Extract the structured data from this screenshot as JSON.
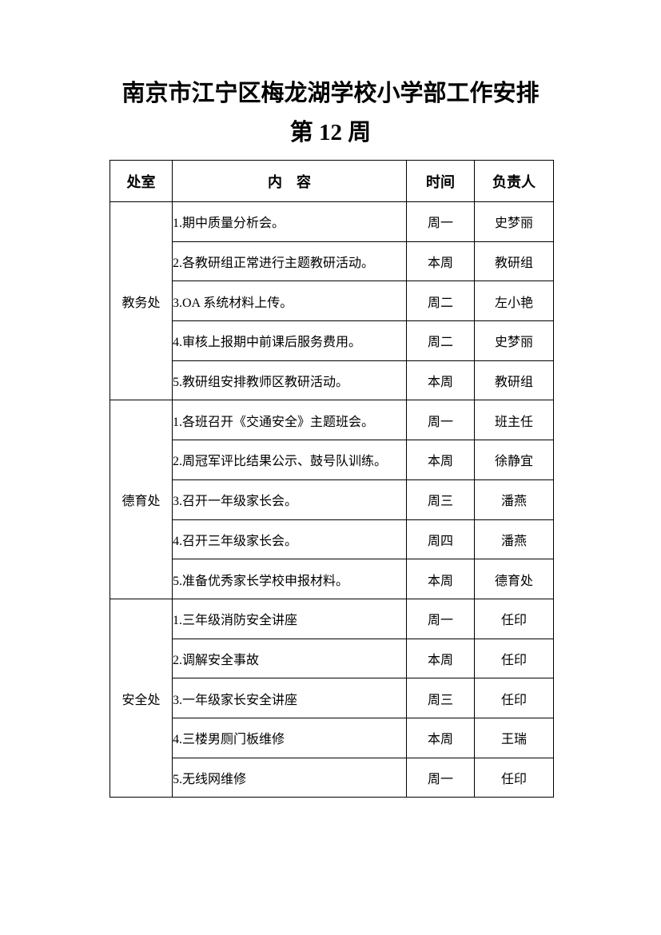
{
  "page": {
    "title": "南京市江宁区梅龙湖学校小学部工作安排",
    "subtitle": "第 12 周"
  },
  "table": {
    "headers": [
      "处室",
      "内　容",
      "时间",
      "负责人"
    ],
    "sections": [
      {
        "department": "教务处",
        "rows": [
          {
            "content": "1.期中质量分析会。",
            "time": "周一",
            "owner": "史梦丽"
          },
          {
            "content": "2.各教研组正常进行主题教研活动。",
            "time": "本周",
            "owner": "教研组"
          },
          {
            "content": "3.OA 系统材料上传。",
            "time": "周二",
            "owner": "左小艳"
          },
          {
            "content": "4.审核上报期中前课后服务费用。",
            "time": "周二",
            "owner": "史梦丽"
          },
          {
            "content": "5.教研组安排教师区教研活动。",
            "time": "本周",
            "owner": "教研组"
          }
        ]
      },
      {
        "department": "德育处",
        "rows": [
          {
            "content": "1.各班召开《交通安全》主题班会。",
            "time": "周一",
            "owner": "班主任"
          },
          {
            "content": "2.周冠军评比结果公示、鼓号队训练。",
            "time": "本周",
            "owner": "徐静宜"
          },
          {
            "content": "3.召开一年级家长会。",
            "time": "周三",
            "owner": "潘燕"
          },
          {
            "content": "4.召开三年级家长会。",
            "time": "周四",
            "owner": "潘燕"
          },
          {
            "content": "5.准备优秀家长学校申报材料。",
            "time": "本周",
            "owner": "德育处"
          }
        ]
      },
      {
        "department": "安全处",
        "rows": [
          {
            "content": "1.三年级消防安全讲座",
            "time": "周一",
            "owner": "任印"
          },
          {
            "content": "2.调解安全事故",
            "time": "本周",
            "owner": "任印"
          },
          {
            "content": "3.一年级家长安全讲座",
            "time": "周三",
            "owner": "任印"
          },
          {
            "content": "4.三楼男厕门板维修",
            "time": "本周",
            "owner": "王瑞"
          },
          {
            "content": "5.无线网维修",
            "time": "周一",
            "owner": "任印"
          }
        ]
      }
    ]
  }
}
